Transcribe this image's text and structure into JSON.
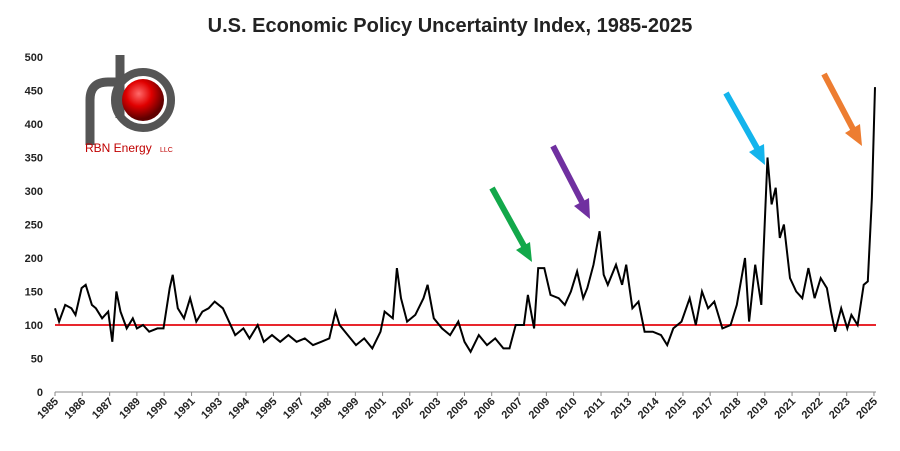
{
  "chart_data": {
    "type": "line",
    "title": "U.S. Economic Policy Uncertainty Index, 1985-2025",
    "logo": {
      "name": "RBN Energy",
      "suffix": "LLC"
    },
    "x": [
      1985.0,
      1985.2,
      1985.5,
      1985.8,
      1986.0,
      1986.3,
      1986.5,
      1986.8,
      1987.0,
      1987.3,
      1987.6,
      1987.8,
      1988.0,
      1988.2,
      1988.5,
      1988.8,
      1989.0,
      1989.3,
      1989.6,
      1990.0,
      1990.3,
      1990.6,
      1990.75,
      1991.0,
      1991.3,
      1991.6,
      1991.9,
      1992.2,
      1992.5,
      1992.8,
      1993.2,
      1993.5,
      1993.8,
      1994.2,
      1994.5,
      1994.9,
      1995.2,
      1995.6,
      1996.0,
      1996.4,
      1996.8,
      1997.2,
      1997.6,
      1998.0,
      1998.4,
      1998.7,
      1998.9,
      1999.3,
      1999.7,
      2000.1,
      2000.5,
      2000.9,
      2001.1,
      2001.5,
      2001.7,
      2001.9,
      2002.2,
      2002.6,
      2003.0,
      2003.2,
      2003.5,
      2003.9,
      2004.3,
      2004.7,
      2005.0,
      2005.3,
      2005.7,
      2006.1,
      2006.5,
      2006.9,
      2007.2,
      2007.5,
      2007.9,
      2008.1,
      2008.4,
      2008.6,
      2008.9,
      2009.2,
      2009.6,
      2009.9,
      2010.2,
      2010.5,
      2010.8,
      2011.0,
      2011.3,
      2011.6,
      2011.8,
      2012.0,
      2012.4,
      2012.7,
      2012.9,
      2013.2,
      2013.5,
      2013.8,
      2014.2,
      2014.6,
      2014.9,
      2015.2,
      2015.6,
      2016.0,
      2016.3,
      2016.6,
      2016.9,
      2017.2,
      2017.6,
      2018.0,
      2018.3,
      2018.7,
      2018.9,
      2019.2,
      2019.5,
      2019.8,
      2020.0,
      2020.2,
      2020.4,
      2020.6,
      2020.9,
      2021.2,
      2021.5,
      2021.8,
      2022.1,
      2022.4,
      2022.7,
      2022.9,
      2023.1,
      2023.4,
      2023.7,
      2023.9,
      2024.2,
      2024.5,
      2024.7,
      2024.9,
      2025.05
    ],
    "series": [
      {
        "name": "Economic Policy Uncertainty Index",
        "color": "#000000",
        "values": [
          125,
          105,
          130,
          125,
          115,
          155,
          160,
          130,
          125,
          110,
          120,
          75,
          150,
          120,
          95,
          110,
          95,
          100,
          90,
          95,
          95,
          155,
          175,
          125,
          110,
          140,
          105,
          120,
          125,
          135,
          125,
          105,
          85,
          95,
          80,
          100,
          75,
          85,
          75,
          85,
          75,
          80,
          70,
          75,
          80,
          120,
          100,
          85,
          70,
          80,
          65,
          90,
          120,
          110,
          185,
          140,
          105,
          115,
          140,
          160,
          110,
          95,
          85,
          105,
          75,
          60,
          85,
          70,
          80,
          65,
          65,
          100,
          100,
          145,
          95,
          185,
          185,
          145,
          140,
          130,
          150,
          180,
          140,
          155,
          190,
          240,
          175,
          160,
          190,
          160,
          190,
          125,
          135,
          90,
          90,
          85,
          70,
          95,
          105,
          140,
          100,
          150,
          125,
          135,
          95,
          100,
          130,
          200,
          105,
          190,
          130,
          350,
          280,
          305,
          230,
          250,
          170,
          150,
          140,
          185,
          140,
          170,
          155,
          120,
          90,
          125,
          95,
          115,
          100,
          160,
          165,
          290,
          455
        ]
      }
    ],
    "reference_line": {
      "value": 100,
      "color": "#e8262d"
    },
    "xlim": [
      1985,
      2025.1
    ],
    "xticks": [
      1985,
      {
        "value": 1986.33,
        "label": "1986"
      },
      {
        "value": 1987.67,
        "label": "1987"
      },
      1989,
      {
        "value": 1990.33,
        "label": "1990"
      },
      {
        "value": 1991.67,
        "label": "1991"
      },
      1993,
      {
        "value": 1994.33,
        "label": "1994"
      },
      {
        "value": 1995.67,
        "label": "1995"
      },
      1997,
      {
        "value": 1998.33,
        "label": "1998"
      },
      {
        "value": 1999.67,
        "label": "1999"
      },
      2001,
      {
        "value": 2002.33,
        "label": "2002"
      },
      {
        "value": 2003.67,
        "label": "2003"
      },
      2005,
      {
        "value": 2006.33,
        "label": "2006"
      },
      {
        "value": 2007.67,
        "label": "2007"
      },
      2009,
      {
        "value": 2010.33,
        "label": "2010"
      },
      {
        "value": 2011.67,
        "label": "2011"
      },
      2013,
      {
        "value": 2014.33,
        "label": "2014"
      },
      {
        "value": 2015.67,
        "label": "2015"
      },
      2017,
      {
        "value": 2018.33,
        "label": "2018"
      },
      {
        "value": 2019.67,
        "label": "2019"
      },
      2021,
      {
        "value": 2022.33,
        "label": "2022"
      },
      {
        "value": 2023.67,
        "label": "2023"
      },
      2025
    ],
    "ylim": [
      0,
      500
    ],
    "yticks": [
      0,
      50,
      100,
      150,
      200,
      250,
      300,
      350,
      400,
      450,
      500
    ]
  }
}
